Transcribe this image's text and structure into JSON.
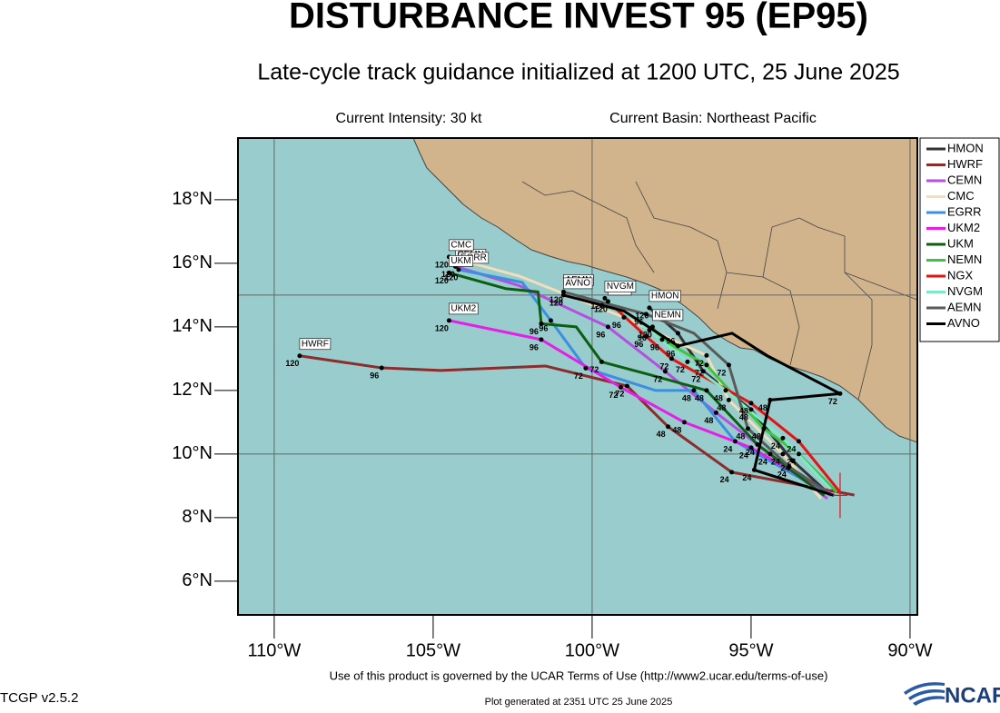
{
  "chart_data": {
    "type": "track",
    "title": "DISTURBANCE INVEST 95 (EP95)",
    "subtitle": "Late-cycle track guidance initialized at 1200 UTC, 25 June 2025",
    "intensity": "Current Intensity: 30 kt",
    "basin": "Current Basin: Northeast Pacific",
    "footer": "Use of this product is governed by the UCAR Terms of Use (http://www2.ucar.edu/terms-of-use)",
    "version": "TCGP v2.5.2",
    "generated": "Plot generated at 2351 UTC   25 June 2025",
    "logo": "NCAR",
    "xlim": [
      -111.14,
      -89.77
    ],
    "ylim": [
      4.94,
      19.94
    ],
    "xticks": [
      {
        "value": -110,
        "label": "110°W"
      },
      {
        "value": -105,
        "label": "105°W"
      },
      {
        "value": -100,
        "label": "100°W"
      },
      {
        "value": -95,
        "label": "95°W"
      },
      {
        "value": -90,
        "label": "90°W"
      }
    ],
    "yticks": [
      {
        "value": 6,
        "label": "6°N"
      },
      {
        "value": 8,
        "label": "8°N"
      },
      {
        "value": 10,
        "label": "10°N"
      },
      {
        "value": 12,
        "label": "12°N"
      },
      {
        "value": 14,
        "label": "14°N"
      },
      {
        "value": 16,
        "label": "16°N"
      },
      {
        "value": 18,
        "label": "18°N"
      }
    ],
    "grid": {
      "lon": [
        -110,
        -100,
        -90
      ],
      "lat": [
        10,
        15
      ]
    },
    "current_position": {
      "lon": -92.2,
      "lat": 8.7,
      "color": "#e21515"
    },
    "series": [
      {
        "name": "HMON",
        "color": "#333333",
        "lon": [
          -92.5,
          -93.7,
          -95.0,
          -96.5,
          -97.3,
          -98.2
        ],
        "lat": [
          8.7,
          9.8,
          11.4,
          12.6,
          13.8,
          14.6
        ],
        "hours": [
          null,
          24,
          48,
          72,
          96,
          120
        ]
      },
      {
        "name": "HWRF",
        "color": "#8b2d2d",
        "lon": [
          -91.75,
          -95.61,
          -97.61,
          -98.9,
          -101.47,
          -104.76,
          -106.62,
          -109.2
        ],
        "lat": [
          8.71,
          9.43,
          10.86,
          12.14,
          12.77,
          12.63,
          12.71,
          13.09
        ],
        "hours": [
          null,
          24,
          48,
          72,
          null,
          null,
          96,
          120
        ]
      },
      {
        "name": "CEMN",
        "color": "#b44fe0",
        "lon": [
          -92.6,
          -94.4,
          -96.1,
          -97.7,
          -99.5,
          -102.3,
          -104.3
        ],
        "lat": [
          8.6,
          10.0,
          11.3,
          12.6,
          14.0,
          15.3,
          15.9
        ],
        "hours": [
          null,
          24,
          48,
          72,
          96,
          null,
          120
        ]
      },
      {
        "name": "CMC",
        "color": "#f0dfb8",
        "lon": [
          -92.8,
          -94.0,
          -95.7,
          -96.4,
          -99.0,
          -102.3,
          -104.5
        ],
        "lat": [
          8.6,
          10.0,
          11.7,
          13.1,
          14.3,
          15.6,
          16.2
        ],
        "hours": [
          null,
          24,
          48,
          72,
          96,
          null,
          120
        ]
      },
      {
        "name": "EGRR",
        "color": "#3a8fe0",
        "lon": [
          -92.5,
          -95.5,
          -96.8,
          -98.0,
          -100.2,
          -101.3,
          -102.2,
          -104.2
        ],
        "lat": [
          8.7,
          10.4,
          12.0,
          12.0,
          12.7,
          14.2,
          15.4,
          15.8
        ],
        "hours": [
          null,
          24,
          48,
          null,
          72,
          96,
          null,
          120
        ]
      },
      {
        "name": "UKM2",
        "color": "#e61ee6",
        "lon": [
          -92.4,
          -95.0,
          -97.1,
          -99.1,
          -101.6,
          -104.5
        ],
        "lat": [
          8.7,
          10.2,
          11.0,
          12.1,
          13.6,
          14.2
        ],
        "hours": [
          null,
          24,
          48,
          72,
          96,
          120
        ]
      },
      {
        "name": "UKM",
        "color": "#0b5e12",
        "lon": [
          -92.7,
          -94.8,
          -96.4,
          -98.2,
          -99.7,
          -100.5,
          -101.6,
          -101.7,
          -102.7,
          -104.5
        ],
        "lat": [
          8.7,
          10.3,
          12.0,
          12.5,
          12.9,
          14.0,
          14.1,
          15.1,
          15.2,
          15.7
        ],
        "hours": [
          null,
          24,
          48,
          null,
          72,
          null,
          96,
          null,
          null,
          120
        ]
      },
      {
        "name": "NEMN",
        "color": "#3fc43f",
        "lon": [
          -92.3,
          -93.5,
          -94.6,
          -96.4,
          -97.8,
          -98.1
        ],
        "lat": [
          8.8,
          10.0,
          10.8,
          12.8,
          13.6,
          14.0
        ],
        "hours": [
          null,
          24,
          48,
          72,
          96,
          120
        ]
      },
      {
        "name": "NGX",
        "color": "#e21515",
        "lon": [
          -92.2,
          -93.5,
          -95.0,
          -97.5,
          -98.3,
          -99.5
        ],
        "lat": [
          8.8,
          10.4,
          11.6,
          13.0,
          13.7,
          14.8
        ],
        "hours": [
          null,
          24,
          48,
          72,
          96,
          120
        ]
      },
      {
        "name": "NVGM",
        "color": "#80e8c8",
        "lon": [
          -92.5,
          -94.0,
          -95.8,
          -97.0,
          -98.2,
          -99.6
        ],
        "lat": [
          8.9,
          10.5,
          12.0,
          12.9,
          13.9,
          14.9
        ],
        "hours": [
          null,
          24,
          48,
          72,
          96,
          120
        ]
      },
      {
        "name": "AEMN",
        "color": "#5a5a5a",
        "lon": [
          -92.6,
          -93.8,
          -95.1,
          -95.7,
          -96.8,
          -98.3,
          -100.9
        ],
        "lat": [
          8.8,
          9.6,
          10.8,
          12.8,
          13.8,
          14.4,
          15.1
        ],
        "hours": [
          null,
          24,
          48,
          72,
          null,
          96,
          120
        ]
      },
      {
        "name": "AVNO",
        "color": "#000000",
        "lon": [
          -92.4,
          -94.9,
          -94.4,
          -92.2,
          -94.5,
          -95.6,
          -97.3,
          -99.0,
          -100.9
        ],
        "lat": [
          8.7,
          9.5,
          11.7,
          11.9,
          13.1,
          13.8,
          13.4,
          14.5,
          15.0
        ],
        "hours": [
          null,
          24,
          48,
          72,
          null,
          null,
          96,
          null,
          120
        ]
      }
    ]
  }
}
